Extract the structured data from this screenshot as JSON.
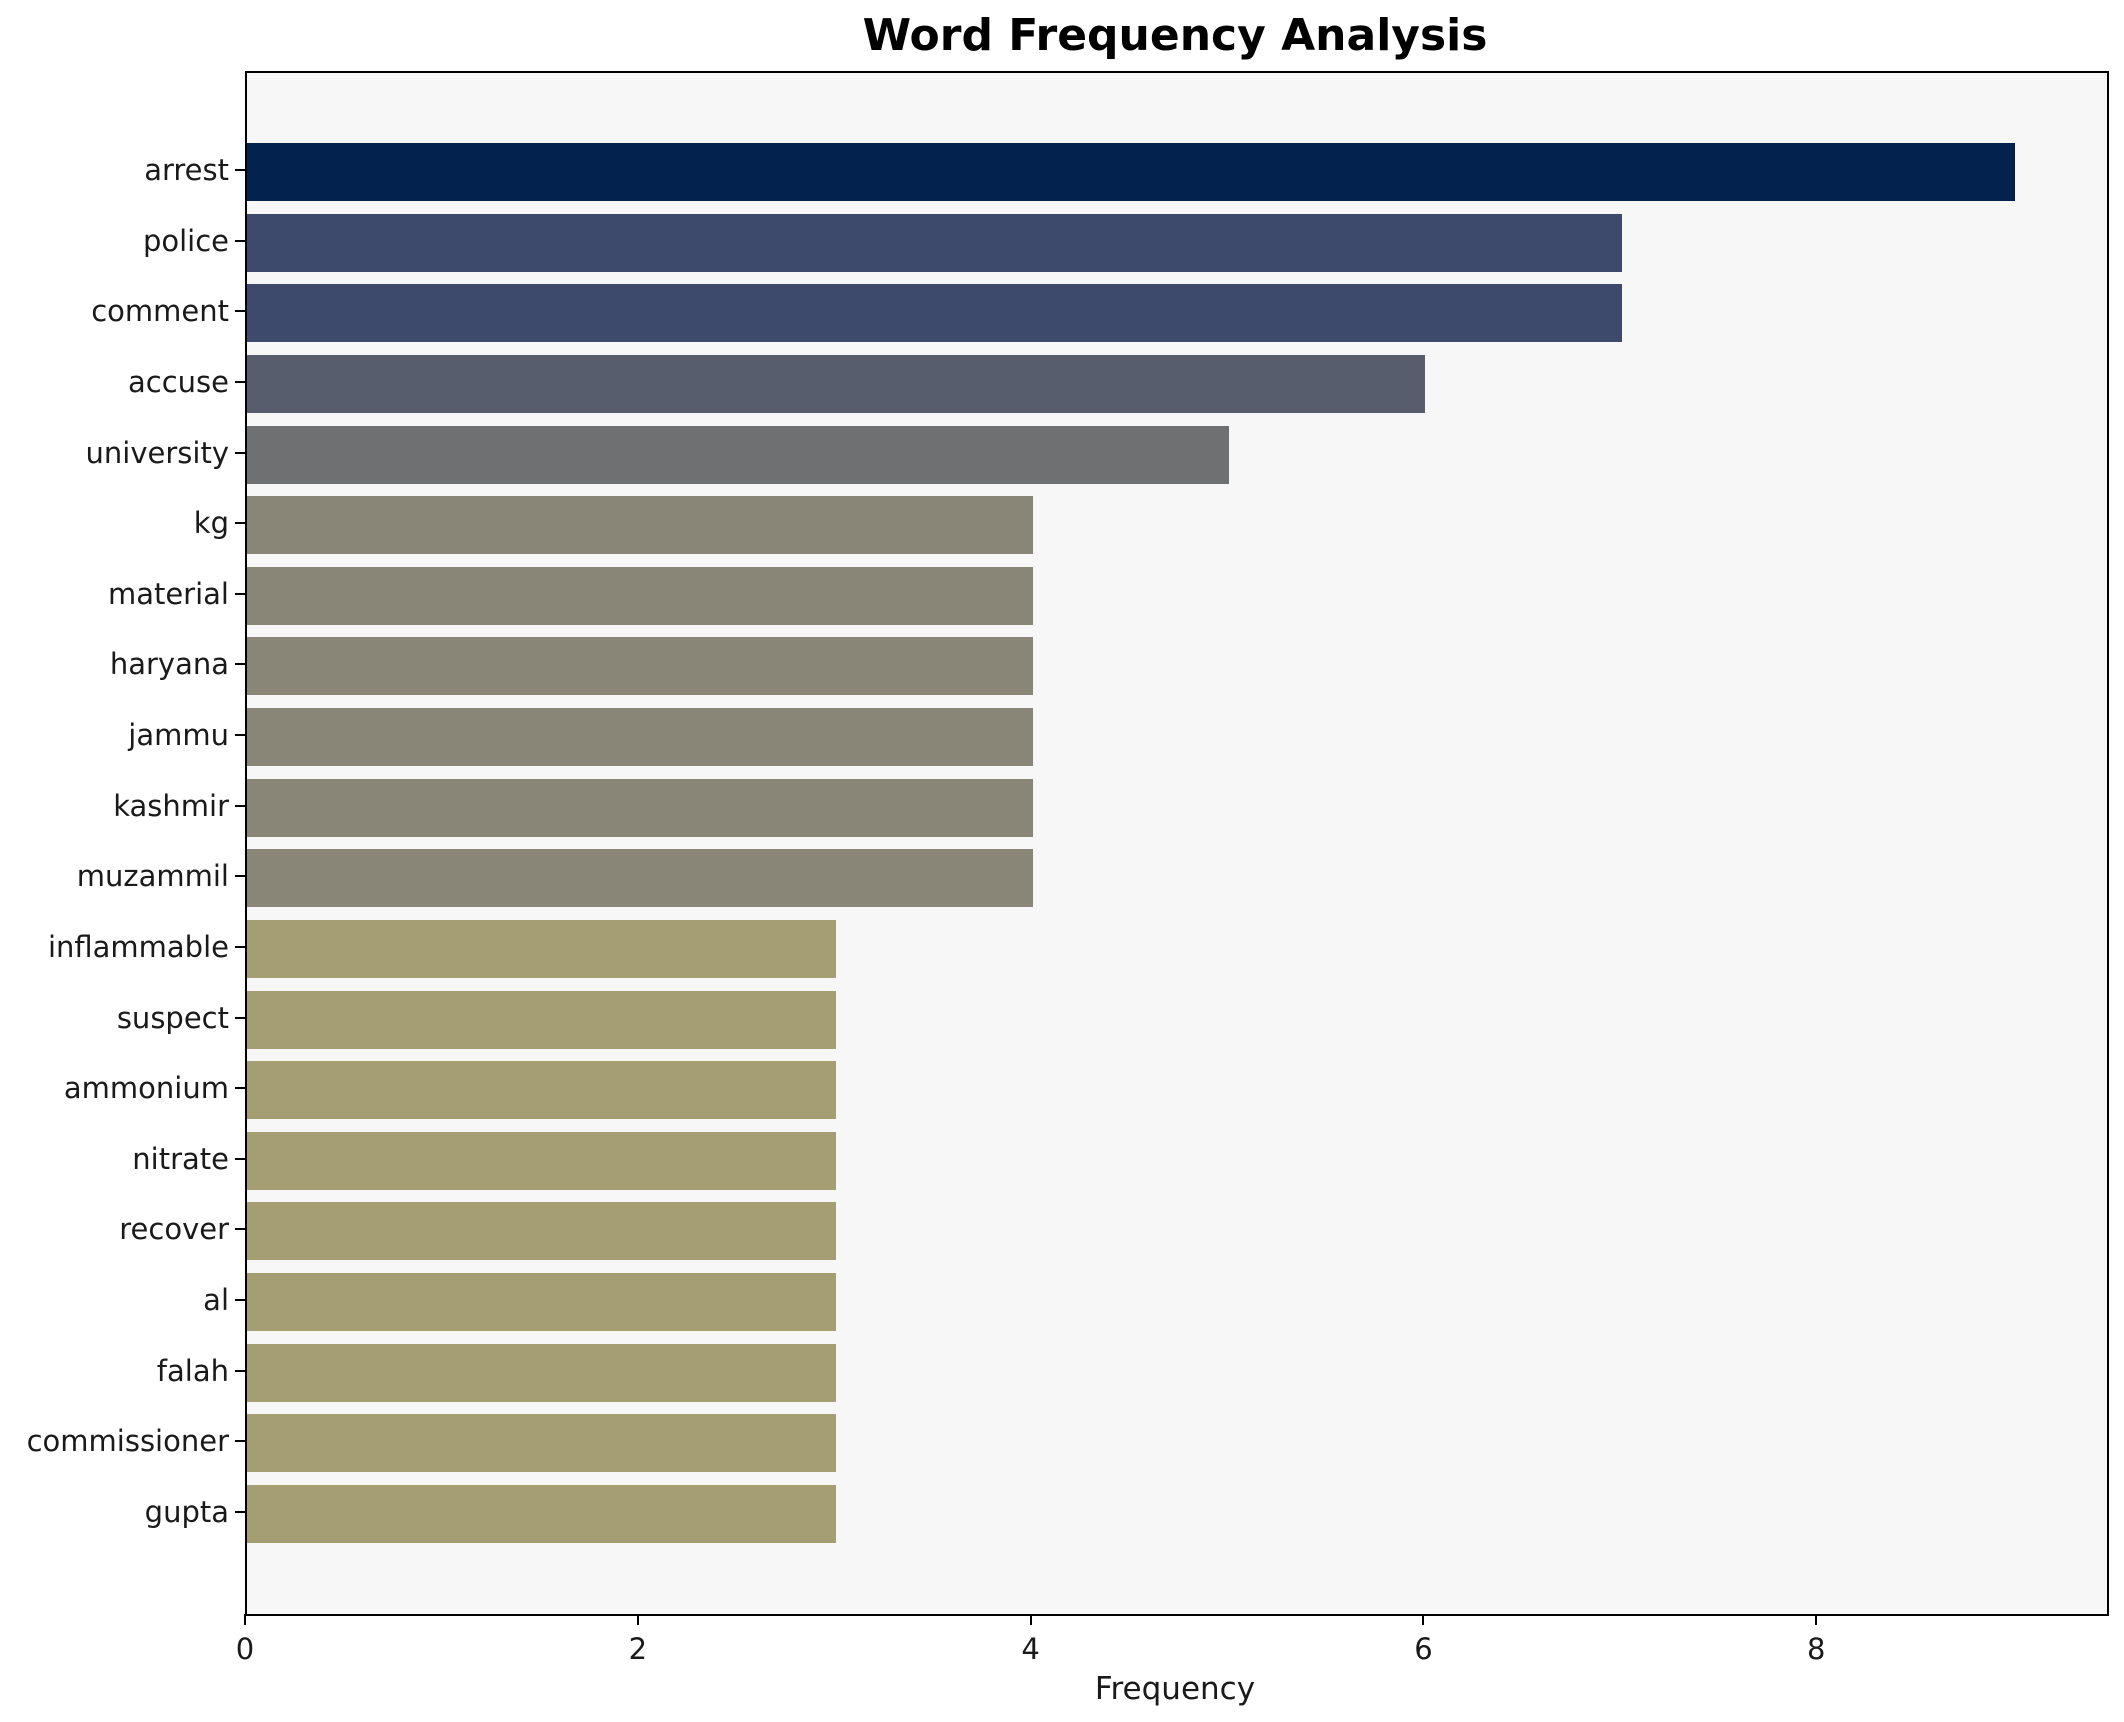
{
  "chart_data": {
    "type": "bar",
    "orientation": "horizontal",
    "title": "Word Frequency Analysis",
    "xlabel": "Frequency",
    "ylabel": "",
    "categories": [
      "arrest",
      "police",
      "comment",
      "accuse",
      "university",
      "kg",
      "material",
      "haryana",
      "jammu",
      "kashmir",
      "muzammil",
      "inflammable",
      "suspect",
      "ammonium",
      "nitrate",
      "recover",
      "al",
      "falah",
      "commissioner",
      "gupta"
    ],
    "values": [
      9,
      7,
      7,
      6,
      5,
      4,
      4,
      4,
      4,
      4,
      4,
      3,
      3,
      3,
      3,
      3,
      3,
      3,
      3,
      3
    ],
    "bar_colors": [
      "#03224d",
      "#3d4a6b",
      "#3d4a6b",
      "#575d6c",
      "#6e7072",
      "#898677",
      "#898677",
      "#898677",
      "#898677",
      "#898677",
      "#898677",
      "#a69e73",
      "#a69e73",
      "#a69e73",
      "#a69e73",
      "#a69e73",
      "#a69e73",
      "#a69e73",
      "#a69e73",
      "#a69e73"
    ],
    "xlim": [
      0,
      9.47
    ],
    "xticks": [
      0,
      2,
      4,
      6,
      8
    ],
    "grid": false,
    "legend": null,
    "plot_bg": "#f7f7f7",
    "figure_bg": "#ffffff",
    "spine_color": "#000000"
  }
}
